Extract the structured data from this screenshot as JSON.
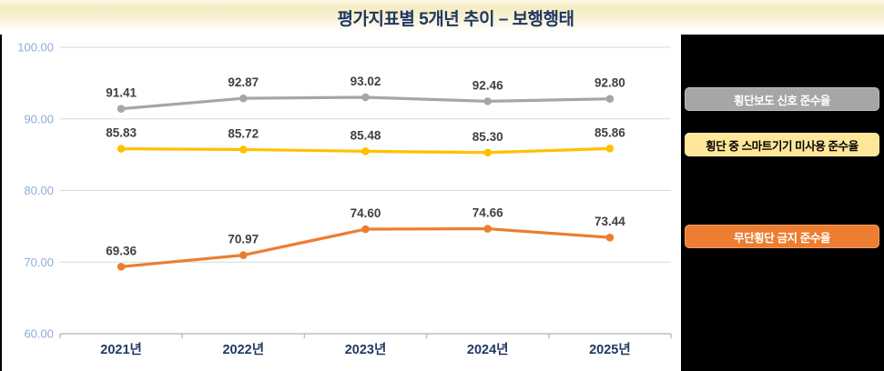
{
  "title": "평가지표별 5개년 추이 – 보행행태",
  "colors": {
    "title_navy": "#1f3864",
    "axis_label_blue": "#8faadc",
    "gridline": "#d9d9d9",
    "axis_line": "#bfbfbf",
    "data_label": "#404040",
    "panel_black": "#000000",
    "series_gray": "#a6a6a6",
    "series_yellow": "#ffc000",
    "series_orange": "#ed7d31",
    "badge_yellow_bg": "#ffe699"
  },
  "legend": {
    "position": "right",
    "items": [
      {
        "label": "횡단보도 신호 준수율",
        "bg": "#a6a6a6",
        "fg": "#ffffff"
      },
      {
        "label": "횡단 중 스마트기기 미사용 준수율",
        "bg": "#ffe699",
        "fg": "#000000"
      },
      {
        "label": "무단횡단 금지 준수율",
        "bg": "#ed7d31",
        "fg": "#ffffff"
      }
    ]
  },
  "chart_data": {
    "type": "line",
    "title": "평가지표별 5개년 추이 – 보행행태",
    "categories": [
      "2021년",
      "2022년",
      "2023년",
      "2024년",
      "2025년"
    ],
    "series": [
      {
        "name": "횡단보도 신호 준수율",
        "color": "#a6a6a6",
        "values": [
          91.41,
          92.87,
          93.02,
          92.46,
          92.8
        ]
      },
      {
        "name": "횡단 중 스마트기기 미사용 준수율",
        "color": "#ffc000",
        "values": [
          85.83,
          85.72,
          85.48,
          85.3,
          85.86
        ]
      },
      {
        "name": "무단횡단 금지 준수율",
        "color": "#ed7d31",
        "values": [
          69.36,
          70.97,
          74.6,
          74.66,
          73.44
        ]
      }
    ],
    "xlabel": "",
    "ylabel": "",
    "ylim": [
      60,
      100
    ],
    "ytick_step": 10,
    "ytick_labels": [
      "60.00",
      "70.00",
      "80.00",
      "90.00",
      "100.00"
    ],
    "grid": true,
    "data_labels": true,
    "data_label_decimals": 2,
    "legend_position": "right"
  }
}
